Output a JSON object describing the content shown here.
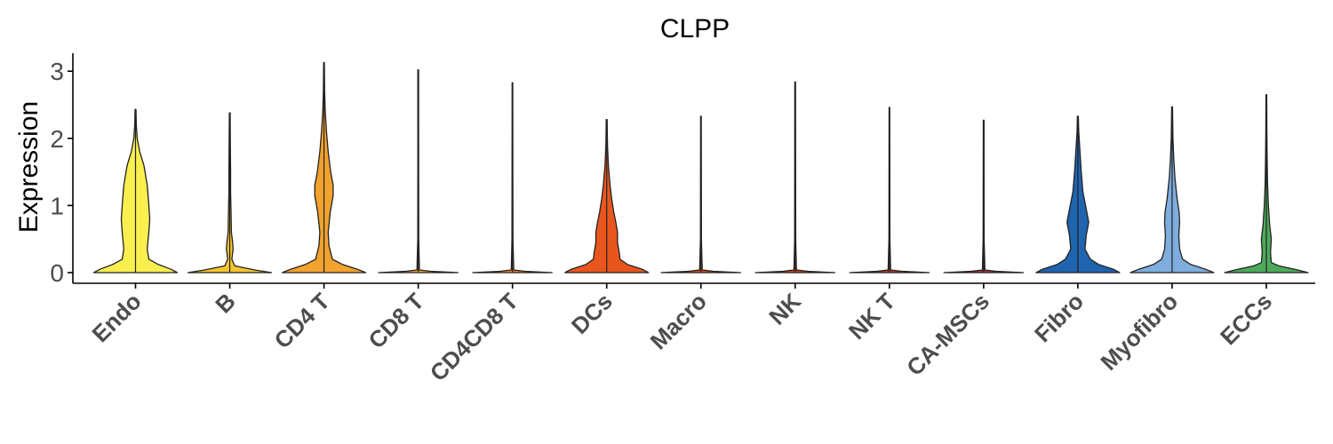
{
  "chart_data": {
    "type": "violin",
    "title": "CLPP",
    "xlabel": "",
    "ylabel": "Expression",
    "ylim": [
      -0.15,
      3.3
    ],
    "yticks": [
      "0",
      "1",
      "2",
      "3"
    ],
    "ytick_values": [
      0,
      1,
      2,
      3
    ],
    "grid": false,
    "legend": "none",
    "categories": [
      "Endo",
      "B",
      "CD4 T",
      "CD8 T",
      "CD4CD8 T",
      "DCs",
      "Macro",
      "NK",
      "NK T",
      "CA-MSCs",
      "Fibro",
      "Myofibro",
      "ECCs"
    ],
    "colors": [
      "#F9EF4E",
      "#F5C431",
      "#F2A22E",
      "#F2A22E",
      "#F08530",
      "#E8561E",
      "#D74B1F",
      "#C9431F",
      "#B43F27",
      "#A03A3A",
      "#1F64AF",
      "#7FADDE",
      "#4DAA5B"
    ],
    "max_values": [
      2.43,
      2.38,
      3.13,
      3.02,
      2.83,
      2.28,
      2.33,
      2.84,
      2.46,
      2.27,
      2.33,
      2.47,
      2.65
    ],
    "density_profiles": [
      [
        [
          0,
          1.0
        ],
        [
          0.05,
          0.85
        ],
        [
          0.12,
          0.55
        ],
        [
          0.2,
          0.32
        ],
        [
          0.35,
          0.28
        ],
        [
          0.6,
          0.32
        ],
        [
          0.8,
          0.34
        ],
        [
          1.0,
          0.32
        ],
        [
          1.3,
          0.28
        ],
        [
          1.6,
          0.2
        ],
        [
          1.8,
          0.1
        ],
        [
          2.0,
          0.04
        ],
        [
          2.2,
          0.02
        ],
        [
          2.43,
          0.01
        ]
      ],
      [
        [
          0,
          1.0
        ],
        [
          0.04,
          0.6
        ],
        [
          0.1,
          0.12
        ],
        [
          0.2,
          0.05
        ],
        [
          0.35,
          0.08
        ],
        [
          0.45,
          0.07
        ],
        [
          0.6,
          0.04
        ],
        [
          0.9,
          0.03
        ],
        [
          1.2,
          0.02
        ],
        [
          1.5,
          0.02
        ],
        [
          1.9,
          0.015
        ],
        [
          2.38,
          0.01
        ]
      ],
      [
        [
          0,
          1.0
        ],
        [
          0.05,
          0.8
        ],
        [
          0.12,
          0.45
        ],
        [
          0.2,
          0.2
        ],
        [
          0.4,
          0.12
        ],
        [
          0.6,
          0.1
        ],
        [
          0.9,
          0.15
        ],
        [
          1.15,
          0.22
        ],
        [
          1.3,
          0.22
        ],
        [
          1.5,
          0.16
        ],
        [
          1.8,
          0.1
        ],
        [
          2.1,
          0.06
        ],
        [
          2.4,
          0.03
        ],
        [
          2.7,
          0.015
        ],
        [
          3.13,
          0.008
        ]
      ],
      [
        [
          0,
          0.95
        ],
        [
          0.02,
          0.3
        ],
        [
          0.04,
          0.03
        ],
        [
          0.5,
          0.012
        ],
        [
          1.5,
          0.01
        ],
        [
          3.02,
          0.008
        ]
      ],
      [
        [
          0,
          0.95
        ],
        [
          0.02,
          0.3
        ],
        [
          0.04,
          0.03
        ],
        [
          0.5,
          0.012
        ],
        [
          1.5,
          0.01
        ],
        [
          2.83,
          0.008
        ]
      ],
      [
        [
          0,
          1.0
        ],
        [
          0.05,
          0.85
        ],
        [
          0.12,
          0.5
        ],
        [
          0.2,
          0.32
        ],
        [
          0.3,
          0.3
        ],
        [
          0.45,
          0.26
        ],
        [
          0.6,
          0.26
        ],
        [
          0.75,
          0.22
        ],
        [
          0.9,
          0.17
        ],
        [
          1.1,
          0.12
        ],
        [
          1.3,
          0.08
        ],
        [
          1.6,
          0.04
        ],
        [
          1.9,
          0.02
        ],
        [
          2.28,
          0.01
        ]
      ],
      [
        [
          0,
          0.95
        ],
        [
          0.02,
          0.3
        ],
        [
          0.04,
          0.03
        ],
        [
          0.5,
          0.012
        ],
        [
          1.5,
          0.01
        ],
        [
          2.33,
          0.008
        ]
      ],
      [
        [
          0,
          0.95
        ],
        [
          0.02,
          0.3
        ],
        [
          0.04,
          0.03
        ],
        [
          0.5,
          0.012
        ],
        [
          1.5,
          0.01
        ],
        [
          2.84,
          0.008
        ]
      ],
      [
        [
          0,
          0.95
        ],
        [
          0.02,
          0.3
        ],
        [
          0.04,
          0.03
        ],
        [
          0.5,
          0.012
        ],
        [
          1.5,
          0.01
        ],
        [
          2.46,
          0.008
        ]
      ],
      [
        [
          0,
          0.95
        ],
        [
          0.02,
          0.3
        ],
        [
          0.04,
          0.03
        ],
        [
          0.5,
          0.012
        ],
        [
          1.5,
          0.01
        ],
        [
          2.27,
          0.008
        ]
      ],
      [
        [
          0,
          1.0
        ],
        [
          0.05,
          0.85
        ],
        [
          0.12,
          0.5
        ],
        [
          0.2,
          0.3
        ],
        [
          0.35,
          0.17
        ],
        [
          0.55,
          0.2
        ],
        [
          0.75,
          0.26
        ],
        [
          0.95,
          0.2
        ],
        [
          1.2,
          0.12
        ],
        [
          1.5,
          0.08
        ],
        [
          1.8,
          0.05
        ],
        [
          2.1,
          0.02
        ],
        [
          2.33,
          0.01
        ]
      ],
      [
        [
          0,
          1.0
        ],
        [
          0.05,
          0.8
        ],
        [
          0.12,
          0.45
        ],
        [
          0.2,
          0.25
        ],
        [
          0.35,
          0.18
        ],
        [
          0.55,
          0.16
        ],
        [
          0.75,
          0.18
        ],
        [
          0.9,
          0.17
        ],
        [
          1.1,
          0.12
        ],
        [
          1.4,
          0.07
        ],
        [
          1.7,
          0.04
        ],
        [
          2.0,
          0.02
        ],
        [
          2.47,
          0.01
        ]
      ],
      [
        [
          0,
          1.0
        ],
        [
          0.04,
          0.75
        ],
        [
          0.1,
          0.3
        ],
        [
          0.15,
          0.12
        ],
        [
          0.3,
          0.1
        ],
        [
          0.5,
          0.12
        ],
        [
          0.7,
          0.08
        ],
        [
          1.0,
          0.05
        ],
        [
          1.3,
          0.03
        ],
        [
          1.7,
          0.02
        ],
        [
          2.1,
          0.012
        ],
        [
          2.65,
          0.008
        ]
      ]
    ]
  }
}
